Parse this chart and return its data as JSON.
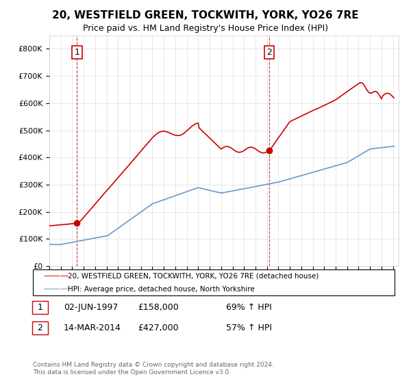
{
  "title": "20, WESTFIELD GREEN, TOCKWITH, YORK, YO26 7RE",
  "subtitle": "Price paid vs. HM Land Registry's House Price Index (HPI)",
  "title_fontsize": 11,
  "subtitle_fontsize": 9,
  "ylim": [
    0,
    850000
  ],
  "yticks": [
    0,
    100000,
    200000,
    300000,
    400000,
    500000,
    600000,
    700000,
    800000
  ],
  "ytick_labels": [
    "£0",
    "£100K",
    "£200K",
    "£300K",
    "£400K",
    "£500K",
    "£600K",
    "£700K",
    "£800K"
  ],
  "xlim_start": 1995.0,
  "xlim_end": 2025.5,
  "point1_x": 1997.42,
  "point1_y": 158000,
  "point1_label": "1",
  "point1_date": "02-JUN-1997",
  "point1_price": "£158,000",
  "point1_hpi": "69% ↑ HPI",
  "point2_x": 2014.2,
  "point2_y": 427000,
  "point2_label": "2",
  "point2_date": "14-MAR-2014",
  "point2_price": "£427,000",
  "point2_hpi": "57% ↑ HPI",
  "red_line_color": "#cc0000",
  "blue_line_color": "#6699cc",
  "vline_color": "#cc0000",
  "legend_red_label": "20, WESTFIELD GREEN, TOCKWITH, YORK, YO26 7RE (detached house)",
  "legend_blue_label": "HPI: Average price, detached house, North Yorkshire",
  "footer_text": "Contains HM Land Registry data © Crown copyright and database right 2024.\nThis data is licensed under the Open Government Licence v3.0.",
  "background_color": "#ffffff",
  "plot_bg_color": "#ffffff",
  "grid_color": "#dddddd"
}
